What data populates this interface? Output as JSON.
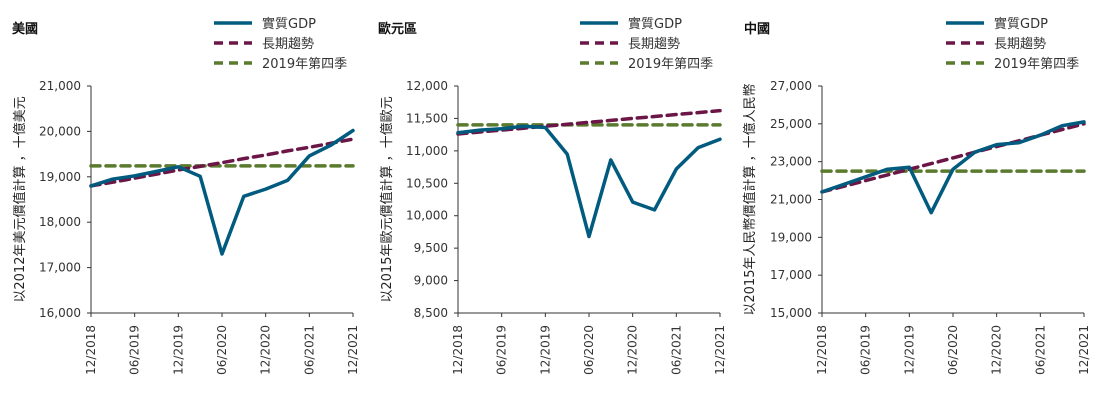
{
  "chart_data": [
    {
      "type": "line",
      "title": "美國",
      "ylabel": "以2012年美元價值計算 ，十億美元",
      "xlabel": "",
      "x_tick_labels": [
        "12/2018",
        "06/2019",
        "12/2019",
        "06/2020",
        "12/2020",
        "06/2021",
        "12/2021"
      ],
      "x": [
        "12/2018",
        "03/2019",
        "06/2019",
        "09/2019",
        "12/2019",
        "03/2020",
        "06/2020",
        "09/2020",
        "12/2020",
        "03/2021",
        "06/2021",
        "09/2021",
        "12/2021"
      ],
      "ylim": [
        16000,
        21000
      ],
      "yticks": [
        16000,
        17000,
        18000,
        19000,
        20000,
        21000
      ],
      "y_tick_labels": [
        "16,000",
        "17,000",
        "18,000",
        "19,000",
        "20,000",
        "21,000"
      ],
      "legend_position": "top-right",
      "grid": false,
      "series": [
        {
          "name": "實質GDP",
          "style": "solid",
          "color": "#005b7f",
          "values": [
            18800,
            18950,
            19020,
            19120,
            19220,
            19010,
            17300,
            18570,
            18730,
            18920,
            19460,
            19700,
            20020
          ]
        },
        {
          "name": "長期趨勢",
          "style": "dashed",
          "color": "#6b1646",
          "values": [
            18800,
            18880,
            18970,
            19060,
            19150,
            19230,
            19310,
            19400,
            19480,
            19570,
            19650,
            19740,
            19830
          ]
        },
        {
          "name": "2019年第四季",
          "style": "dashed",
          "color": "#5a7a2e",
          "values": [
            19240,
            19240,
            19240,
            19240,
            19240,
            19240,
            19240,
            19240,
            19240,
            19240,
            19240,
            19240,
            19240
          ]
        }
      ]
    },
    {
      "type": "line",
      "title": "歐元區",
      "ylabel": "以2015年歐元價值計算 ，十億歐元",
      "xlabel": "",
      "x_tick_labels": [
        "12/2018",
        "06/2019",
        "12/2019",
        "06/2020",
        "12/2020",
        "06/2021",
        "12/2021"
      ],
      "x": [
        "12/2018",
        "03/2019",
        "06/2019",
        "09/2019",
        "12/2019",
        "03/2020",
        "06/2020",
        "09/2020",
        "12/2020",
        "03/2021",
        "06/2021",
        "09/2021",
        "12/2021"
      ],
      "ylim": [
        8500,
        12000
      ],
      "yticks": [
        8500,
        9000,
        9500,
        10000,
        10500,
        11000,
        11500,
        12000
      ],
      "y_tick_labels": [
        "8,500",
        "9,000",
        "9,500",
        "10,000",
        "10,500",
        "11,000",
        "11,500",
        "12,000"
      ],
      "legend_position": "top-right",
      "grid": false,
      "series": [
        {
          "name": "實質GDP",
          "style": "solid",
          "color": "#005b7f",
          "values": [
            11280,
            11320,
            11340,
            11380,
            11360,
            10950,
            9680,
            10860,
            10210,
            10090,
            10720,
            11050,
            11180
          ]
        },
        {
          "name": "長期趨勢",
          "style": "dashed",
          "color": "#6b1646",
          "values": [
            11260,
            11290,
            11320,
            11350,
            11380,
            11410,
            11440,
            11470,
            11500,
            11530,
            11560,
            11590,
            11620
          ]
        },
        {
          "name": "2019年第四季",
          "style": "dashed",
          "color": "#5a7a2e",
          "values": [
            11400,
            11400,
            11400,
            11400,
            11400,
            11400,
            11400,
            11400,
            11400,
            11400,
            11400,
            11400,
            11400
          ]
        }
      ]
    },
    {
      "type": "line",
      "title": "中國",
      "ylabel": "以2015年人民幣價值計算 ，十億人民幣",
      "xlabel": "",
      "x_tick_labels": [
        "12/2018",
        "06/2019",
        "12/2019",
        "06/2020",
        "12/2020",
        "06/2021",
        "12/2021"
      ],
      "x": [
        "12/2018",
        "03/2019",
        "06/2019",
        "09/2019",
        "12/2019",
        "03/2020",
        "06/2020",
        "09/2020",
        "12/2020",
        "03/2021",
        "06/2021",
        "09/2021",
        "12/2021"
      ],
      "ylim": [
        15000,
        27000
      ],
      "yticks": [
        15000,
        17000,
        19000,
        21000,
        23000,
        25000,
        27000
      ],
      "y_tick_labels": [
        "15,000",
        "17,000",
        "19,000",
        "21,000",
        "23,000",
        "25,000",
        "27,000"
      ],
      "legend_position": "top-right",
      "grid": false,
      "series": [
        {
          "name": "實質GDP",
          "style": "solid",
          "color": "#005b7f",
          "values": [
            21400,
            21800,
            22200,
            22600,
            22700,
            20300,
            22600,
            23500,
            23900,
            24000,
            24400,
            24900,
            25100
          ]
        },
        {
          "name": "長期趨勢",
          "style": "dashed",
          "color": "#6b1646",
          "values": [
            21400,
            21700,
            22000,
            22300,
            22600,
            22900,
            23200,
            23500,
            23800,
            24100,
            24400,
            24700,
            25000
          ]
        },
        {
          "name": "2019年第四季",
          "style": "dashed",
          "color": "#5a7a2e",
          "values": [
            22500,
            22500,
            22500,
            22500,
            22500,
            22500,
            22500,
            22500,
            22500,
            22500,
            22500,
            22500,
            22500
          ]
        }
      ]
    }
  ]
}
